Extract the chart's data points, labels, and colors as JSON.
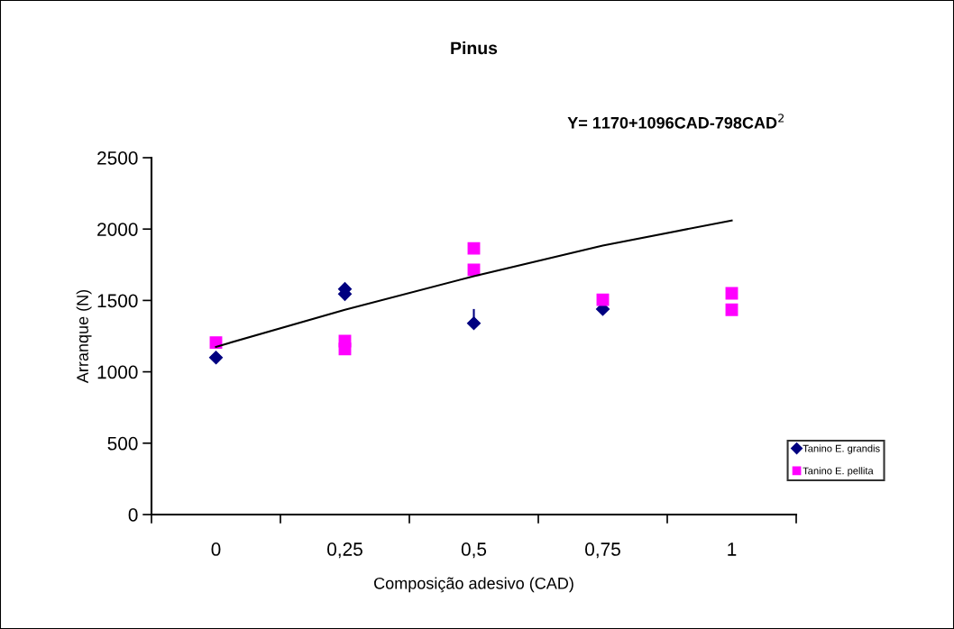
{
  "chart_data": {
    "type": "scatter",
    "title": "Pinus",
    "xlabel": "Composição adesivo (CAD)",
    "ylabel": "Arranque (N)",
    "annotations": [
      "Y= 1170+1096CAD-798CAD$^{2}$"
    ],
    "categories": [
      "0",
      "0,25",
      "0,5",
      "0,75",
      "1"
    ],
    "series": [
      {
        "name": "Tanino E. grandis",
        "marker": "diamond",
        "color": "#000080",
        "x": [
          "0",
          "0,25",
          "0,25",
          "0,5",
          "0,75"
        ],
        "values": [
          1100,
          1580,
          1545,
          1340,
          1440
        ],
        "errors": [
          null,
          null,
          null,
          [
            1340,
            1440
          ],
          null
        ]
      },
      {
        "name": "Tanino E. pellita",
        "marker": "square",
        "color": "#ff00ff",
        "x": [
          "0",
          "0,25",
          "0,25",
          "0,5",
          "0,5",
          "0,75",
          "1",
          "1"
        ],
        "values": [
          1205,
          1215,
          1160,
          1865,
          1715,
          1505,
          1550,
          1435
        ]
      },
      {
        "type": "line",
        "marker": "none",
        "line_style": "solid",
        "color": "#000000",
        "x": [
          "0",
          "0,25",
          "0,5",
          "0,75",
          "1"
        ],
        "values": [
          1175,
          1435,
          1670,
          1885,
          2060
        ]
      }
    ],
    "ylim": [
      0,
      2500
    ],
    "yticks": [
      0,
      500,
      1000,
      1500,
      2000,
      2500
    ],
    "grid": false,
    "legend": "right"
  }
}
